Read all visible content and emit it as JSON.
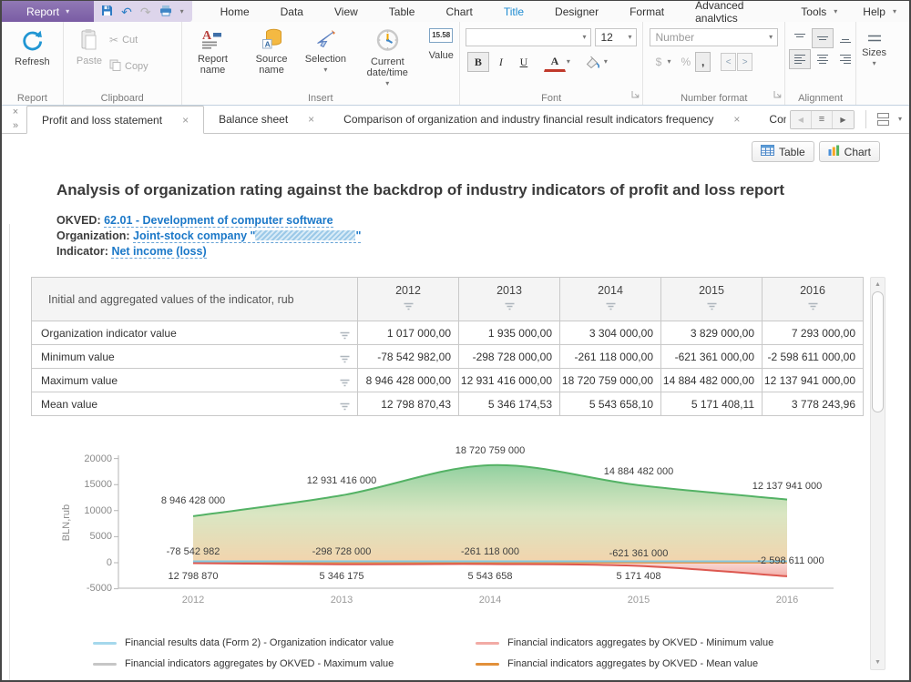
{
  "icons": {
    "close": "×",
    "chevrons_right": "»",
    "caret": "▾",
    "back": "◀",
    "forward": "▶",
    "scroll_up": "▲",
    "scroll_down": "▼",
    "cut_glyph": "✂",
    "undo": "↶",
    "redo": "↷",
    "menu": "≡"
  },
  "titlebar": {
    "report_button": "Report",
    "menus": [
      "Home",
      "Data",
      "View",
      "Table",
      "Chart",
      "Title",
      "Designer",
      "Format",
      "Advanced analytics"
    ],
    "tools": "Tools",
    "help": "Help"
  },
  "ribbon": {
    "refresh": "Refresh",
    "paste": "Paste",
    "cut": "Cut",
    "copy": "Copy",
    "report_name": "Report name",
    "source_name": "Source name",
    "selection": "Selection",
    "current_datetime": "Current date/time",
    "value": "Value",
    "value_preview": "15.58",
    "font_size": "12",
    "bold": "B",
    "italic": "I",
    "underline": "U",
    "font_color": "A",
    "number_placeholder": "Number",
    "dollar": "$",
    "percent": "%",
    "comma": ",",
    "prev": "<",
    "next": ">",
    "sizes": "Sizes",
    "group_report": "Report",
    "group_clipboard": "Clipboard",
    "group_insert": "Insert",
    "group_font": "Font",
    "group_number": "Number format",
    "group_alignment": "Alignment"
  },
  "tabs": [
    {
      "label": "Profit and loss statement"
    },
    {
      "label": "Balance sheet"
    },
    {
      "label": "Comparison of organization and industry financial result indicators frequency"
    },
    {
      "label": "Comparis"
    }
  ],
  "view_toggle": {
    "table": "Table",
    "chart": "Chart"
  },
  "page": {
    "title": "Analysis of organization rating against the backdrop of industry indicators of profit and loss report",
    "okved_label": "OKVED:",
    "okved_value": "62.01 - Development of computer software",
    "organization_label": "Organization:",
    "organization_value": "Joint-stock company \"",
    "organization_value_suffix": "\"",
    "indicator_label": "Indicator:",
    "indicator_value": "Net income (loss)"
  },
  "table": {
    "corner_header": "Initial and aggregated values of the indicator, rub",
    "years": [
      "2012",
      "2013",
      "2014",
      "2015",
      "2016"
    ],
    "rows": [
      {
        "label": "Organization indicator value",
        "values": [
          "1 017 000,00",
          "1 935 000,00",
          "3 304 000,00",
          "3 829 000,00",
          "7 293 000,00"
        ]
      },
      {
        "label": "Minimum value",
        "values": [
          "-78 542 982,00",
          "-298 728 000,00",
          "-261 118 000,00",
          "-621 361 000,00",
          "-2 598 611 000,00"
        ]
      },
      {
        "label": "Maximum value",
        "values": [
          "8 946 428 000,00",
          "12 931 416 000,00",
          "18 720 759 000,00",
          "14 884 482 000,00",
          "12 137 941 000,00"
        ]
      },
      {
        "label": "Mean value",
        "values": [
          "12 798 870,43",
          "5 346 174,53",
          "5 543 658,10",
          "5 171 408,11",
          "3 778 243,96"
        ]
      }
    ]
  },
  "chart_data": {
    "type": "area",
    "ylabel": "BLN,rub",
    "x_categories": [
      "2012",
      "2013",
      "2014",
      "2015",
      "2016"
    ],
    "ylim": [
      -5000,
      20000
    ],
    "yticks": [
      "20000",
      "15000",
      "10000",
      "5000",
      "0",
      "-5000"
    ],
    "grid": false,
    "legend_position": "bottom",
    "series": [
      {
        "name": "Financial indicators aggregates by OKVED - Maximum value",
        "line_color": "#54b265",
        "legend_color": "#c6c6c6",
        "values": [
          8946.428,
          12931.416,
          18720.759,
          14884.482,
          12137.941
        ],
        "point_labels": [
          "8 946 428 000",
          "12 931 416 000",
          "18 720 759 000",
          "14 884 482 000",
          "12 137 941 000"
        ]
      },
      {
        "name": "Financial indicators aggregates by OKVED - Minimum value",
        "line_color": "#dd5850",
        "legend_color": "#f2aba5",
        "values": [
          -78.542982,
          -298.728,
          -261.118,
          -621.361,
          -2598.611
        ],
        "point_labels": [
          "-78 542 982",
          "-298 728 000",
          "-261 118 000",
          "-621 361 000",
          "-2 598 611 000"
        ]
      },
      {
        "name": "Financial results data (Form 2) - Organization indicator value",
        "line_color": "#84c9e4",
        "legend_color": "#a5d8ec",
        "values": [
          1.017,
          1.935,
          3.304,
          3.829,
          7.293
        ],
        "point_labels": []
      },
      {
        "name": "Financial indicators aggregates by OKVED - Mean value",
        "line_color": "#e2903a",
        "legend_color": "#e2903a",
        "values": [
          12.79887043,
          5.34617453,
          5.5436581,
          5.17140811,
          3.77824396
        ],
        "point_labels": [
          "12 798 870",
          "5 346 175",
          "5 543 658",
          "5 171 408",
          ""
        ]
      }
    ]
  }
}
